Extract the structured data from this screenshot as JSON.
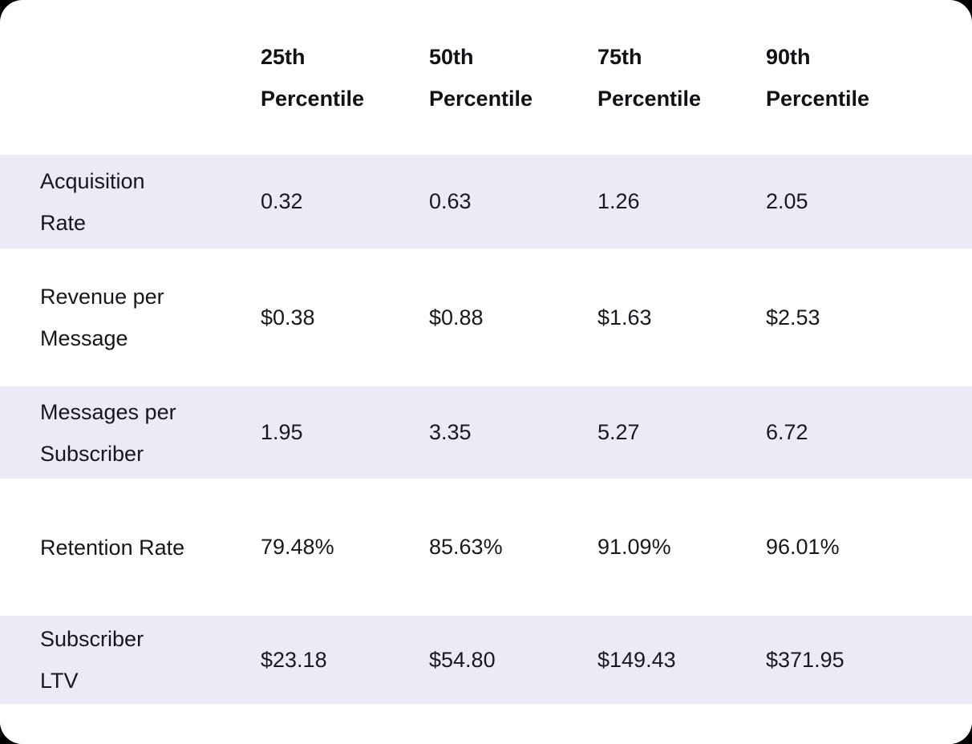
{
  "chart_data": {
    "type": "table",
    "title": "",
    "columns": [
      "25th Percentile",
      "50th Percentile",
      "75th Percentile",
      "90th Percentile"
    ],
    "rows": [
      {
        "label": "Acquisition Rate",
        "values": [
          "0.32",
          "0.63",
          "1.26",
          "2.05"
        ]
      },
      {
        "label": "Revenue per Message",
        "values": [
          "$0.38",
          "$0.88",
          "$1.63",
          "$2.53"
        ]
      },
      {
        "label": "Messages per Subscriber",
        "values": [
          "1.95",
          "3.35",
          "5.27",
          "6.72"
        ]
      },
      {
        "label": "Retention Rate",
        "values": [
          "79.48%",
          "85.63%",
          "91.09%",
          "96.01%"
        ]
      },
      {
        "label": "Subscriber LTV",
        "values": [
          "$23.18",
          "$54.80",
          "$149.43",
          "$371.95"
        ]
      }
    ],
    "layout": {
      "striped_rows": [
        0,
        2,
        4
      ],
      "legend": "none",
      "grid": "off"
    },
    "colors": {
      "stripe_bg": "#ECEAF6",
      "card_bg": "#FFFFFF",
      "page_bg": "#000000",
      "header_text": "#0F1115",
      "body_text": "#17191F"
    }
  }
}
